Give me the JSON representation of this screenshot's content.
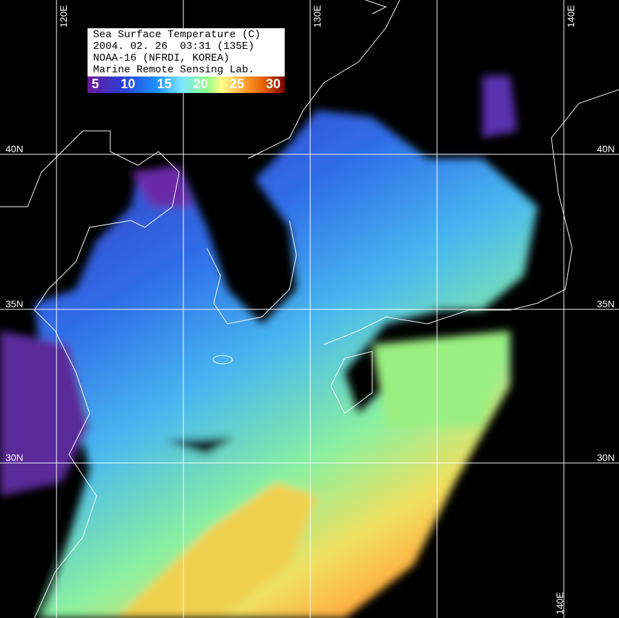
{
  "legend": {
    "title": "Sea Surface Temperature (C)",
    "datetime": "2004. 02. 26  03:31 (135E)",
    "satellite": "NOAA-16 (NFRDI, KOREA)",
    "lab": "Marine Remote Sensing Lab.",
    "scale_ticks": [
      "5",
      "10",
      "15",
      "20",
      "25",
      "30"
    ],
    "scale_colors": [
      "#6a1a9a",
      "#2a3fd8",
      "#1e90ff",
      "#7fe8ff",
      "#8aff8a",
      "#ffff8a",
      "#ffa030",
      "#7a0000"
    ]
  },
  "grid": {
    "longitudes": [
      "120E",
      "130E",
      "140E"
    ],
    "bottom_longitude": "140E",
    "latitudes_left": [
      "40N",
      "35N",
      "30N"
    ],
    "latitudes_right": [
      "40N",
      "35N",
      "30N"
    ],
    "line_color": "#ffffff"
  },
  "background_color": "#000000",
  "coastline_color": "#ffffff"
}
